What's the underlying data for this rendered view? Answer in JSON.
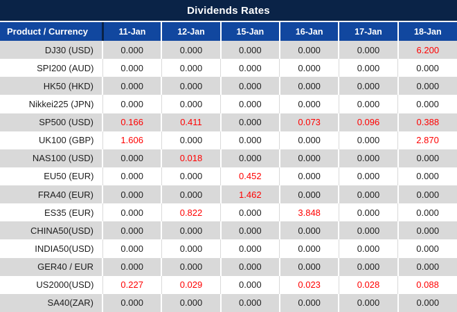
{
  "title": "Dividends Rates",
  "colors": {
    "title_bg": "#0a2347",
    "header_bg": "#11479f",
    "header_text": "#ffffff",
    "row_alt_bg": "#d9d9d9",
    "row_bg": "#ffffff",
    "value_text": "#1d1d1d",
    "highlight_text": "#ff0000"
  },
  "table": {
    "product_header": "Product / Currency",
    "date_headers": [
      "11-Jan",
      "12-Jan",
      "15-Jan",
      "16-Jan",
      "17-Jan",
      "18-Jan"
    ],
    "rows": [
      {
        "product": "DJ30 (USD)",
        "values": [
          "0.000",
          "0.000",
          "0.000",
          "0.000",
          "0.000",
          "6.200"
        ]
      },
      {
        "product": "SPI200 (AUD)",
        "values": [
          "0.000",
          "0.000",
          "0.000",
          "0.000",
          "0.000",
          "0.000"
        ]
      },
      {
        "product": "HK50 (HKD)",
        "values": [
          "0.000",
          "0.000",
          "0.000",
          "0.000",
          "0.000",
          "0.000"
        ]
      },
      {
        "product": "Nikkei225 (JPN)",
        "values": [
          "0.000",
          "0.000",
          "0.000",
          "0.000",
          "0.000",
          "0.000"
        ]
      },
      {
        "product": "SP500 (USD)",
        "values": [
          "0.166",
          "0.411",
          "0.000",
          "0.073",
          "0.096",
          "0.388"
        ]
      },
      {
        "product": "UK100 (GBP)",
        "values": [
          "1.606",
          "0.000",
          "0.000",
          "0.000",
          "0.000",
          "2.870"
        ]
      },
      {
        "product": "NAS100 (USD)",
        "values": [
          "0.000",
          "0.018",
          "0.000",
          "0.000",
          "0.000",
          "0.000"
        ]
      },
      {
        "product": "EU50 (EUR)",
        "values": [
          "0.000",
          "0.000",
          "0.452",
          "0.000",
          "0.000",
          "0.000"
        ]
      },
      {
        "product": "FRA40 (EUR)",
        "values": [
          "0.000",
          "0.000",
          "1.462",
          "0.000",
          "0.000",
          "0.000"
        ]
      },
      {
        "product": "ES35 (EUR)",
        "values": [
          "0.000",
          "0.822",
          "0.000",
          "3.848",
          "0.000",
          "0.000"
        ]
      },
      {
        "product": "CHINA50(USD)",
        "values": [
          "0.000",
          "0.000",
          "0.000",
          "0.000",
          "0.000",
          "0.000"
        ]
      },
      {
        "product": "INDIA50(USD)",
        "values": [
          "0.000",
          "0.000",
          "0.000",
          "0.000",
          "0.000",
          "0.000"
        ]
      },
      {
        "product": "GER40 / EUR",
        "values": [
          "0.000",
          "0.000",
          "0.000",
          "0.000",
          "0.000",
          "0.000"
        ]
      },
      {
        "product": "US2000(USD)",
        "values": [
          "0.227",
          "0.029",
          "0.000",
          "0.023",
          "0.028",
          "0.088"
        ]
      },
      {
        "product": "SA40(ZAR)",
        "values": [
          "0.000",
          "0.000",
          "0.000",
          "0.000",
          "0.000",
          "0.000"
        ]
      }
    ]
  }
}
